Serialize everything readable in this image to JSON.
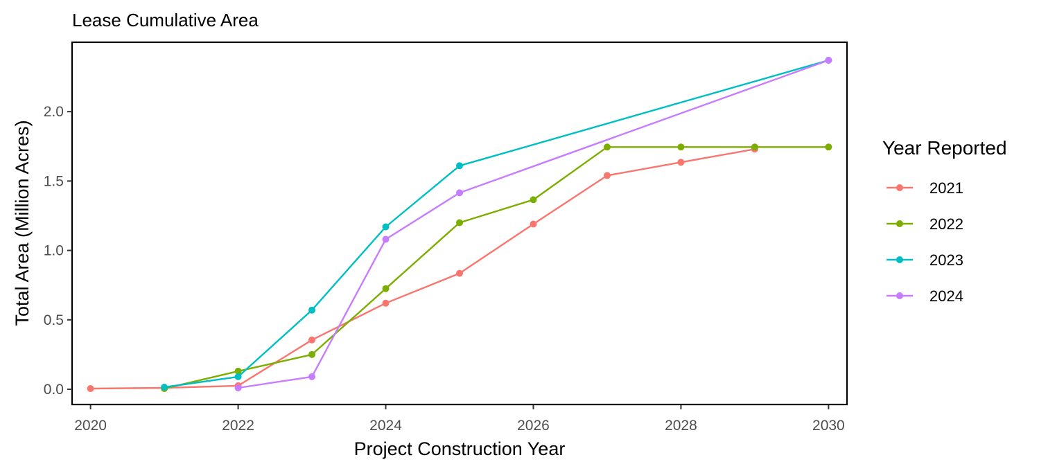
{
  "chart_data": {
    "type": "line",
    "title": "Lease Cumulative Area",
    "xlabel": "Project Construction Year",
    "ylabel": "Total Area (Million Acres)",
    "xlim": [
      2019.75,
      2030.25
    ],
    "ylim": [
      -0.11,
      2.5
    ],
    "x_ticks": [
      2020,
      2022,
      2024,
      2026,
      2028,
      2030
    ],
    "x_tick_labels": [
      "2020",
      "2022",
      "2024",
      "2026",
      "2028",
      "2030"
    ],
    "y_ticks": [
      0.0,
      0.5,
      1.0,
      1.5,
      2.0
    ],
    "y_tick_labels": [
      "0.0",
      "0.5",
      "1.0",
      "1.5",
      "2.0"
    ],
    "grid": false,
    "legend": {
      "title": "Year Reported",
      "position": "right"
    },
    "series": [
      {
        "name": "2021",
        "color": "#F8766D",
        "x": [
          2020,
          2021,
          2022,
          2023,
          2024,
          2025,
          2026,
          2027,
          2028,
          2029
        ],
        "y": [
          0.005,
          0.01,
          0.025,
          0.355,
          0.62,
          0.835,
          1.19,
          1.54,
          1.635,
          1.73
        ]
      },
      {
        "name": "2022",
        "color": "#7CAE00",
        "x": [
          2021,
          2022,
          2023,
          2024,
          2025,
          2026,
          2027,
          2028,
          2029,
          2030
        ],
        "y": [
          0.005,
          0.13,
          0.25,
          0.725,
          1.2,
          1.365,
          1.745,
          1.745,
          1.745,
          1.745
        ]
      },
      {
        "name": "2023",
        "color": "#00BFC4",
        "x": [
          2021,
          2022,
          2023,
          2024,
          2025,
          2030
        ],
        "y": [
          0.015,
          0.09,
          0.57,
          1.17,
          1.61,
          2.37
        ]
      },
      {
        "name": "2024",
        "color": "#C77CFF",
        "x": [
          2022,
          2023,
          2024,
          2025,
          2030
        ],
        "y": [
          0.01,
          0.09,
          1.08,
          1.415,
          2.37
        ]
      }
    ]
  }
}
